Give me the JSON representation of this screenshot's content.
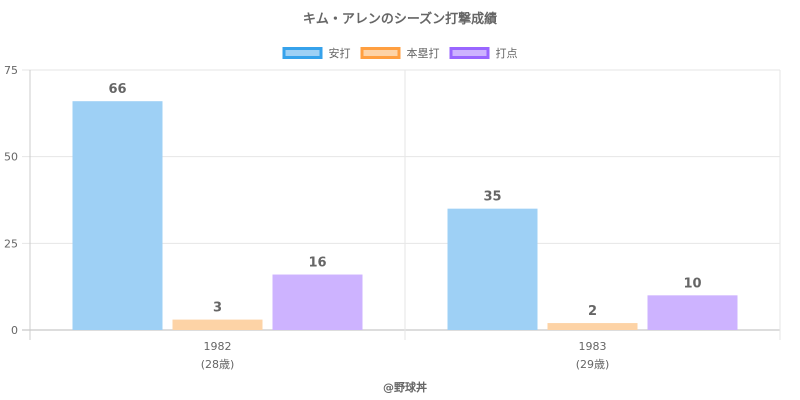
{
  "footer": "@野球丼",
  "chart_data": {
    "type": "bar",
    "title": "キム・アレンのシーズン打撃成績",
    "categories": [
      "1982",
      "1983"
    ],
    "category_sublabels": [
      "(28歳)",
      "(29歳)"
    ],
    "series": [
      {
        "name": "安打",
        "values": [
          66,
          35
        ],
        "fill": "#9ed0f5",
        "border": "#36a2eb"
      },
      {
        "name": "本塁打",
        "values": [
          3,
          2
        ],
        "fill": "#fdd3a6",
        "border": "#ff9f40"
      },
      {
        "name": "打点",
        "values": [
          16,
          10
        ],
        "fill": "#cdb3ff",
        "border": "#9966ff"
      }
    ],
    "ylim": [
      0,
      75
    ],
    "yticks": [
      0,
      25,
      50,
      75
    ],
    "grid": true,
    "legend_position": "top"
  }
}
